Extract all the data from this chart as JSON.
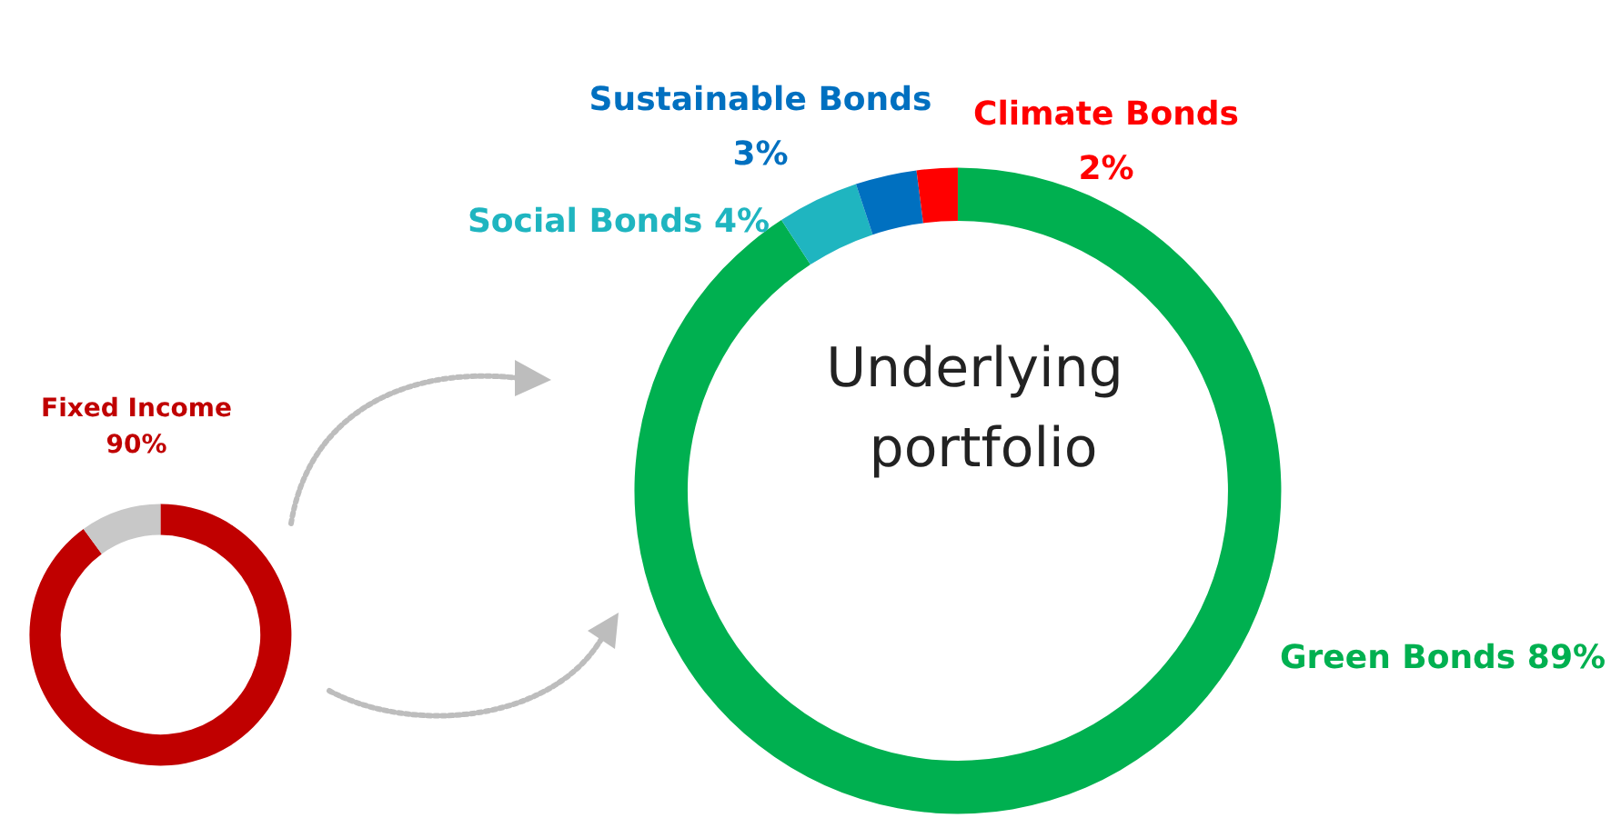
{
  "chart_data": [
    {
      "type": "donut",
      "categories": [
        "Fixed Income",
        null
      ],
      "values": [
        90,
        10
      ],
      "colors": [
        "#c00000",
        "#c8c8c8"
      ],
      "value_labels": [
        "90%",
        null
      ]
    },
    {
      "type": "donut",
      "title": "Underlying portfolio",
      "categories": [
        "Green Bonds",
        "Social Bonds",
        "Sustainable Bonds",
        "Climate Bonds"
      ],
      "values": [
        89,
        4,
        3,
        2
      ],
      "colors": [
        "#00b050",
        "#1fb5c0",
        "#0070c0",
        "#ff0000"
      ],
      "value_labels": [
        "89%",
        "4%",
        "3%",
        "2%"
      ]
    }
  ]
}
